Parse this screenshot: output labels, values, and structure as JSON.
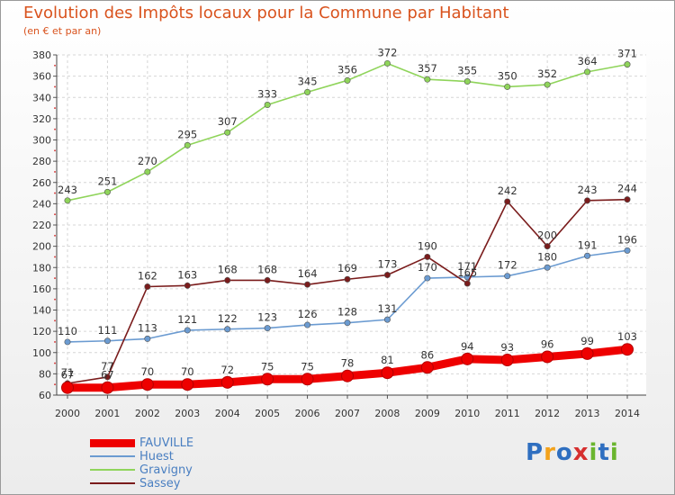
{
  "title": "Evolution des Impôts locaux pour la Commune par Habitant",
  "subtitle": "(en € et par an)",
  "logo": {
    "parts": [
      "P",
      "r",
      "o",
      "x",
      "i",
      "t",
      "i"
    ],
    "colors": [
      "#2f6fc0",
      "#f3a21b",
      "#2f6fc0",
      "#d62f2f",
      "#6ab52e",
      "#2f6fc0",
      "#6ab52e"
    ]
  },
  "chart_data": {
    "type": "line",
    "title": "Evolution des Impôts locaux pour la Commune par Habitant",
    "ylabel": "(en € et par an)",
    "xlabel": "",
    "ylim": [
      60,
      380
    ],
    "yticks": [
      60,
      80,
      100,
      120,
      140,
      160,
      180,
      200,
      220,
      240,
      260,
      280,
      300,
      320,
      340,
      360,
      380
    ],
    "categories": [
      "2000",
      "2001",
      "2002",
      "2003",
      "2004",
      "2005",
      "2006",
      "2007",
      "2008",
      "2009",
      "2010",
      "2011",
      "2012",
      "2013",
      "2014"
    ],
    "grid": true,
    "series": [
      {
        "name": "FAUVILLE",
        "color": "#ee0000",
        "thick": true,
        "values": [
          67,
          67,
          70,
          70,
          72,
          75,
          75,
          78,
          81,
          86,
          94,
          93,
          96,
          99,
          103
        ],
        "labels": [
          "67",
          "67",
          "70",
          "70",
          "72",
          "75",
          "75",
          "78",
          "81",
          "86",
          "94",
          "93",
          "96",
          "99",
          "103"
        ]
      },
      {
        "name": "Huest",
        "color": "#6b9bd1",
        "thick": false,
        "values": [
          110,
          111,
          113,
          121,
          122,
          123,
          126,
          128,
          131,
          170,
          171,
          172,
          180,
          191,
          196
        ],
        "labels": [
          "110",
          "111",
          "113",
          "121",
          "122",
          "123",
          "126",
          "128",
          "131",
          "170",
          "171",
          "172",
          "180",
          "191",
          "196"
        ]
      },
      {
        "name": "Gravigny",
        "color": "#8fd45a",
        "thick": false,
        "values": [
          243,
          251,
          270,
          295,
          307,
          333,
          345,
          356,
          372,
          357,
          355,
          350,
          352,
          364,
          371
        ],
        "labels": [
          "243",
          "251",
          "270",
          "295",
          "307",
          "333",
          "345",
          "356",
          "372",
          "357",
          "355",
          "350",
          "352",
          "364",
          "371"
        ]
      },
      {
        "name": "Sassey",
        "color": "#7a1c1c",
        "thick": false,
        "values": [
          71,
          77,
          162,
          163,
          168,
          168,
          164,
          169,
          173,
          190,
          165,
          242,
          200,
          243,
          244
        ],
        "labels": [
          "71",
          "77",
          "162",
          "163",
          "168",
          "168",
          "164",
          "169",
          "173",
          "190",
          "165",
          "242",
          "200",
          "243",
          "244"
        ]
      }
    ],
    "legend_position": "bottom-left"
  }
}
